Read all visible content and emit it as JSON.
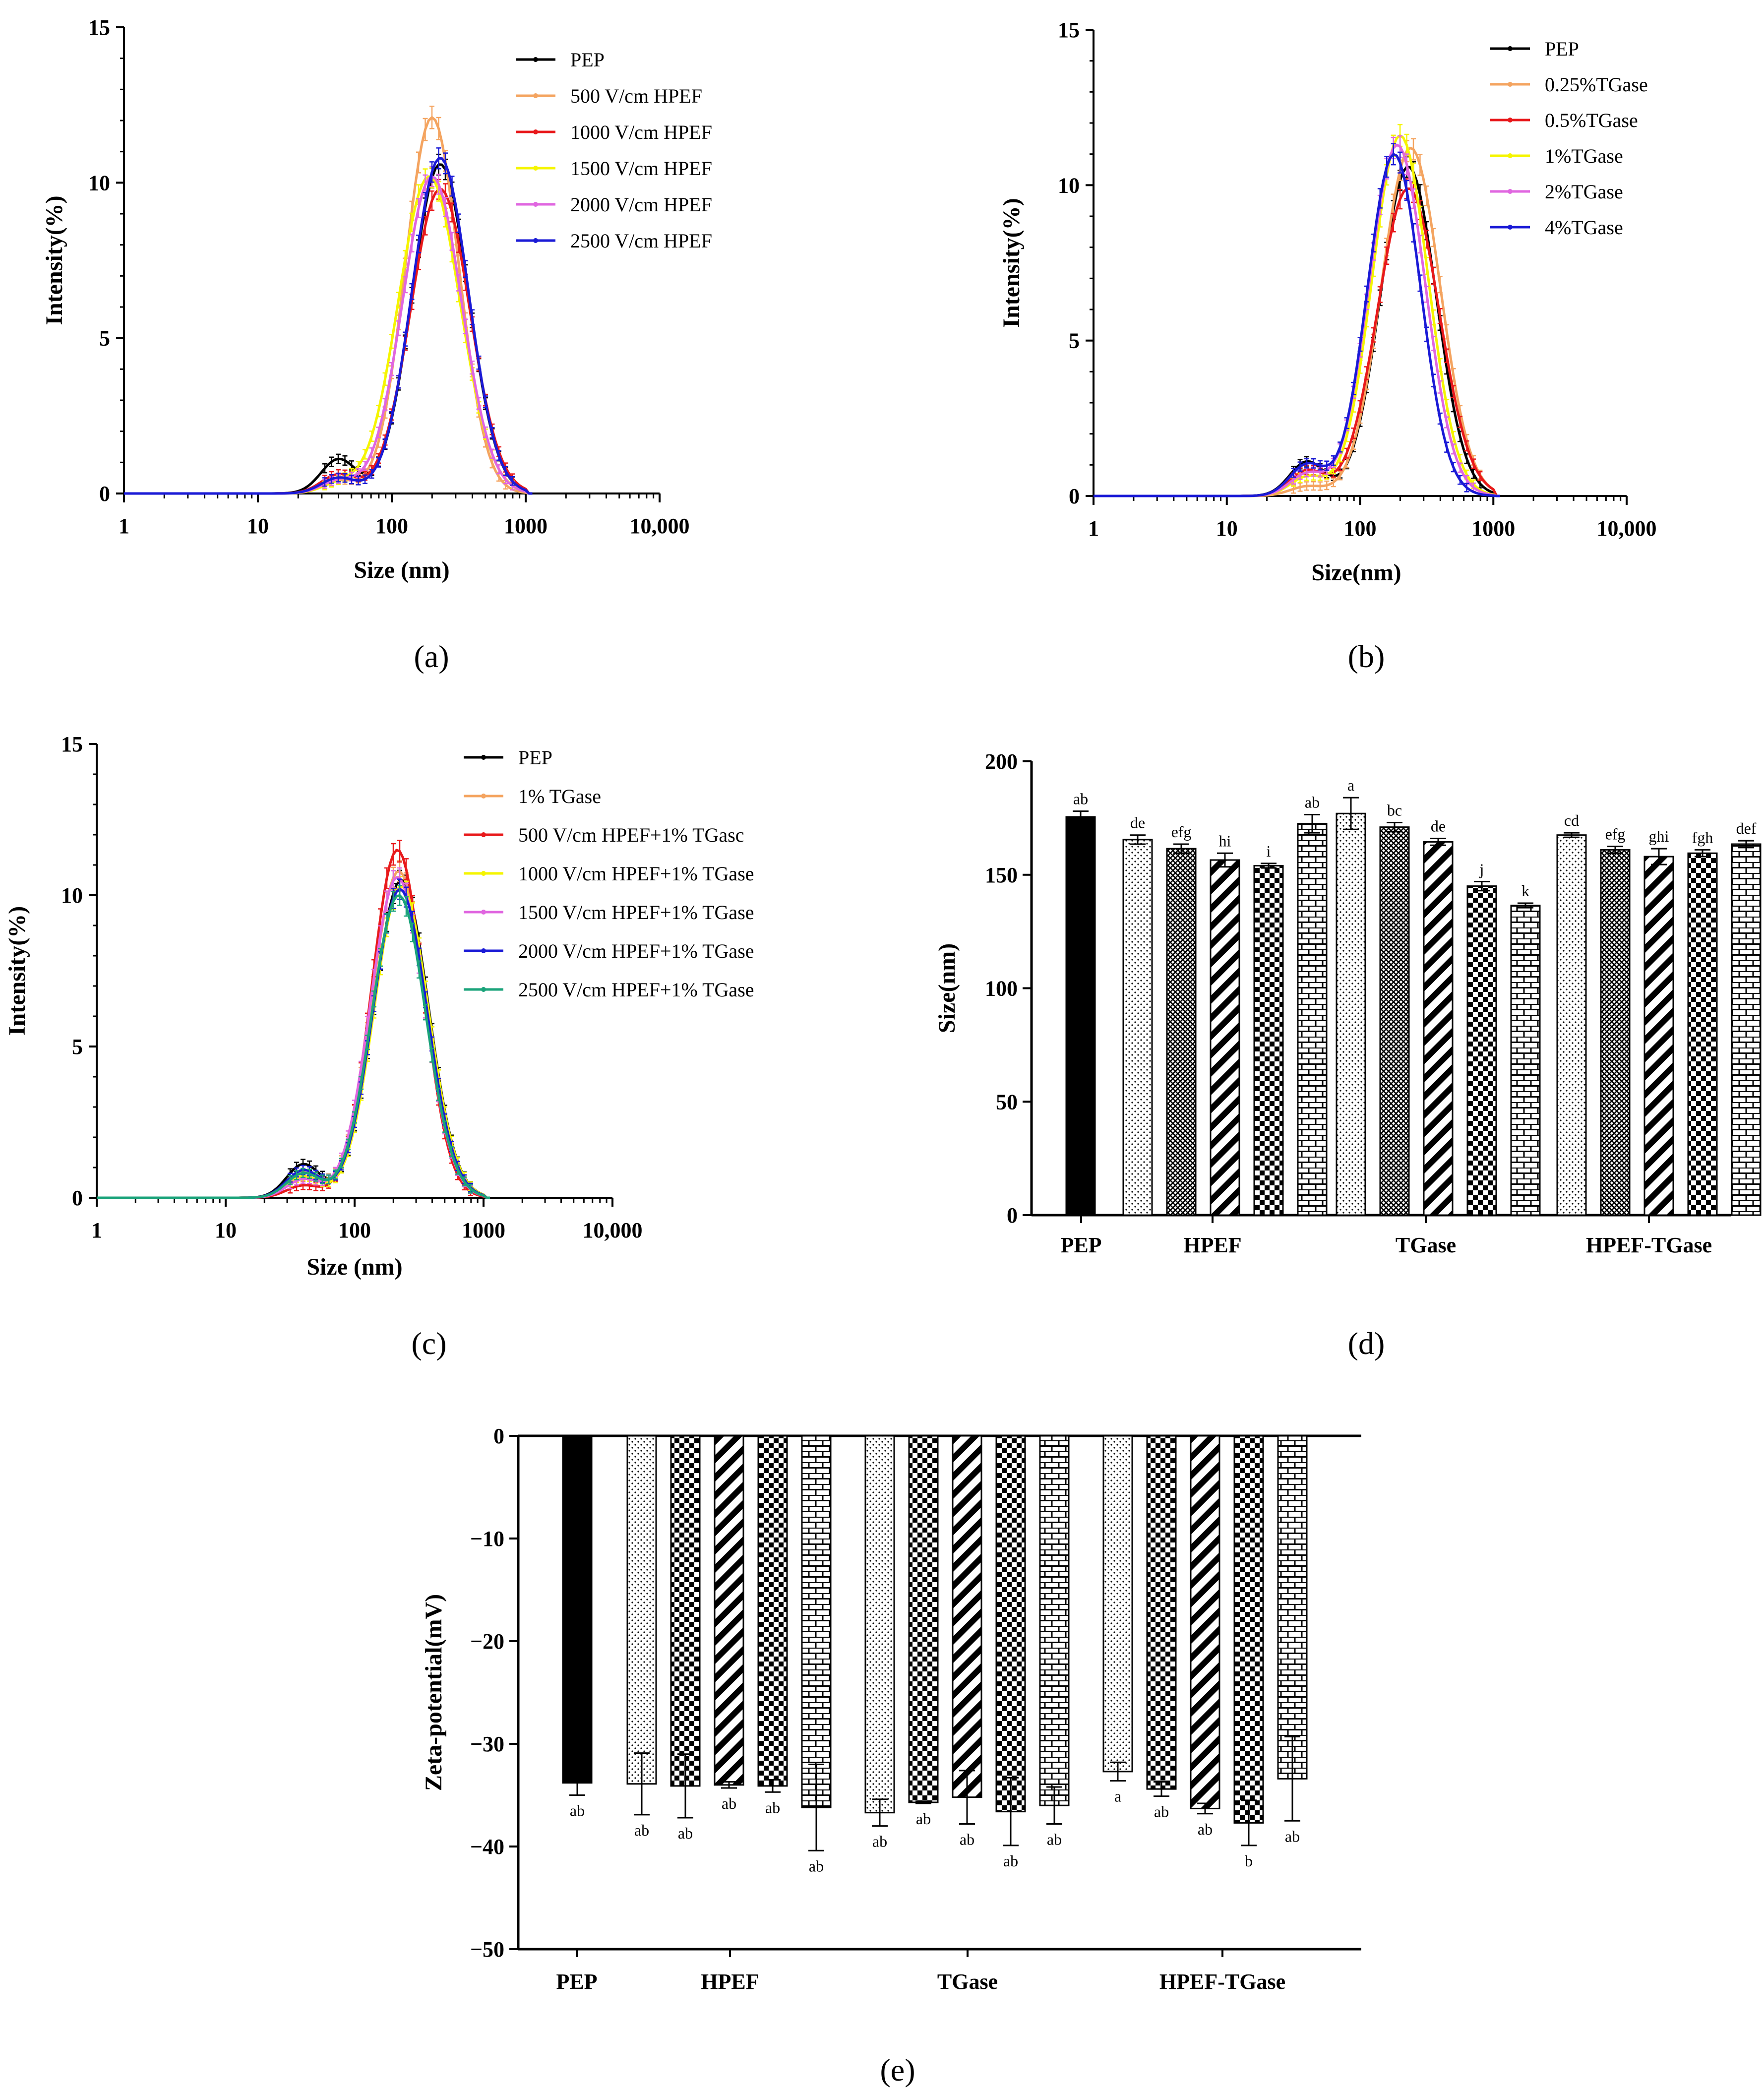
{
  "colors": {
    "PEP": "#000000",
    "c_orange": "#f4a460",
    "c_red": "#e8191b",
    "c_yellow": "#f5f500",
    "c_magenta": "#e066e0",
    "c_blue": "#1a1ad6",
    "c_teal": "#1aa37a"
  },
  "chart_data": [
    {
      "id": "a",
      "type": "line",
      "panel_label": "(a)",
      "xlabel": "Size (nm)",
      "ylabel": "Intensity(%)",
      "x_scale": "log",
      "xlim": [
        1,
        10000
      ],
      "ylim": [
        0,
        15
      ],
      "xticks": [
        "1",
        "10",
        "100",
        "1000",
        "10,000"
      ],
      "yticks": [
        "0",
        "5",
        "10",
        "15"
      ],
      "legend_position": "top-right",
      "series": [
        {
          "name": "PEP",
          "color": "#000000",
          "peak": 10.6,
          "center": 230,
          "width": 0.21,
          "shoulder": 1.1
        },
        {
          "name": "500   V/cm HPEF",
          "color": "#f4a460",
          "peak": 12.1,
          "center": 200,
          "width": 0.2,
          "shoulder": 0.4
        },
        {
          "name": "1000 V/cm HPEF",
          "color": "#e8191b",
          "peak": 9.8,
          "center": 230,
          "width": 0.22,
          "shoulder": 0.6
        },
        {
          "name": "1500 V/cm HPEF",
          "color": "#f5f500",
          "peak": 10.2,
          "center": 190,
          "width": 0.23,
          "shoulder": 0.3
        },
        {
          "name": "2000 V/cm HPEF",
          "color": "#e066e0",
          "peak": 10.2,
          "center": 200,
          "width": 0.22,
          "shoulder": 0.4
        },
        {
          "name": "2500 V/cm HPEF",
          "color": "#1a1ad6",
          "peak": 10.8,
          "center": 230,
          "width": 0.21,
          "shoulder": 0.5
        }
      ]
    },
    {
      "id": "b",
      "type": "line",
      "panel_label": "(b)",
      "xlabel": "Size(nm)",
      "ylabel": "Intensity(%)",
      "x_scale": "log",
      "xlim": [
        1,
        10000
      ],
      "ylim": [
        0,
        15
      ],
      "xticks": [
        "1",
        "10",
        "100",
        "1000",
        "10,000"
      ],
      "yticks": [
        "0",
        "5",
        "10",
        "15"
      ],
      "legend_position": "top-right",
      "series": [
        {
          "name": "PEP",
          "color": "#000000",
          "peak": 10.6,
          "center": 230,
          "width": 0.21,
          "shoulder": 1.1
        },
        {
          "name": "0.25%TGase",
          "color": "#f4a460",
          "peak": 11.2,
          "center": 240,
          "width": 0.22,
          "shoulder": 0.3
        },
        {
          "name": "0.5%TGase",
          "color": "#e8191b",
          "peak": 9.9,
          "center": 230,
          "width": 0.23,
          "shoulder": 0.8
        },
        {
          "name": "1%TGase",
          "color": "#f5f500",
          "peak": 11.6,
          "center": 200,
          "width": 0.21,
          "shoulder": 0.6
        },
        {
          "name": "2%TGase",
          "color": "#e066e0",
          "peak": 11.3,
          "center": 190,
          "width": 0.21,
          "shoulder": 0.7
        },
        {
          "name": "4%TGase",
          "color": "#1a1ad6",
          "peak": 11.0,
          "center": 180,
          "width": 0.2,
          "shoulder": 1.0
        }
      ]
    },
    {
      "id": "c",
      "type": "line",
      "panel_label": "(c)",
      "xlabel": "Size (nm)",
      "ylabel": "Intensity(%)",
      "x_scale": "log",
      "xlim": [
        1,
        10000
      ],
      "ylim": [
        0,
        15
      ],
      "xticks": [
        "1",
        "10",
        "100",
        "1000",
        "10,000"
      ],
      "yticks": [
        "0",
        "5",
        "10",
        "15"
      ],
      "legend_position": "top-right",
      "series": [
        {
          "name": "PEP",
          "color": "#000000",
          "peak": 10.5,
          "center": 230,
          "width": 0.21,
          "shoulder": 1.1
        },
        {
          "name": "1% TGase",
          "color": "#f4a460",
          "peak": 10.8,
          "center": 220,
          "width": 0.21,
          "shoulder": 0.8
        },
        {
          "name": "500   V/cm HPEF+1% TGasc",
          "color": "#e8191b",
          "peak": 11.5,
          "center": 215,
          "width": 0.2,
          "shoulder": 0.4
        },
        {
          "name": "1000  V/cm HPEF+1% TGase",
          "color": "#f5f500",
          "peak": 10.3,
          "center": 230,
          "width": 0.21,
          "shoulder": 0.7
        },
        {
          "name": "1500  V/cm HPEF+1% TGase",
          "color": "#e066e0",
          "peak": 10.6,
          "center": 215,
          "width": 0.21,
          "shoulder": 0.6
        },
        {
          "name": "2000  V/cm HPEF+1% TGase",
          "color": "#1a1ad6",
          "peak": 10.2,
          "center": 225,
          "width": 0.21,
          "shoulder": 0.9
        },
        {
          "name": "2500  V/cm HPEF+1% TGase",
          "color": "#1aa37a",
          "peak": 10.0,
          "center": 220,
          "width": 0.21,
          "shoulder": 0.8
        }
      ]
    },
    {
      "id": "d",
      "type": "bar",
      "panel_label": "(d)",
      "ylabel": "Size(nm)",
      "ylim": [
        0,
        200
      ],
      "yticks": [
        "0",
        "50",
        "100",
        "150",
        "200"
      ],
      "groups": [
        "PEP",
        "HPEF",
        "TGase",
        "HPEF-TGase"
      ],
      "bars": [
        {
          "group": 0,
          "pattern": "solid",
          "value": 175.5,
          "err": 2.5,
          "label": "ab"
        },
        {
          "group": 1,
          "pattern": "dots",
          "value": 165.5,
          "err": 2,
          "label": "de"
        },
        {
          "group": 1,
          "pattern": "cross",
          "value": 161.5,
          "err": 2,
          "label": "efg"
        },
        {
          "group": 1,
          "pattern": "diag",
          "value": 156.5,
          "err": 3,
          "label": "hi"
        },
        {
          "group": 1,
          "pattern": "checker",
          "value": 154,
          "err": 1,
          "label": "i"
        },
        {
          "group": 1,
          "pattern": "brick",
          "value": 172.5,
          "err": 4,
          "label": "ab"
        },
        {
          "group": 2,
          "pattern": "dots",
          "value": 177,
          "err": 7,
          "label": "a"
        },
        {
          "group": 2,
          "pattern": "cross",
          "value": 171,
          "err": 2,
          "label": "bc"
        },
        {
          "group": 2,
          "pattern": "diag",
          "value": 164.5,
          "err": 1.5,
          "label": "de"
        },
        {
          "group": 2,
          "pattern": "checker",
          "value": 145,
          "err": 2,
          "label": "j"
        },
        {
          "group": 2,
          "pattern": "brick",
          "value": 136.5,
          "err": 1,
          "label": "k"
        },
        {
          "group": 3,
          "pattern": "dots",
          "value": 167.5,
          "err": 1,
          "label": "cd"
        },
        {
          "group": 3,
          "pattern": "cross",
          "value": 161,
          "err": 1.5,
          "label": "efg"
        },
        {
          "group": 3,
          "pattern": "diag",
          "value": 158,
          "err": 3.5,
          "label": "ghi"
        },
        {
          "group": 3,
          "pattern": "checker",
          "value": 159.5,
          "err": 1.5,
          "label": "fgh"
        },
        {
          "group": 3,
          "pattern": "brick",
          "value": 163.5,
          "err": 1.5,
          "label": "def"
        }
      ]
    },
    {
      "id": "e",
      "type": "bar",
      "panel_label": "(e)",
      "ylabel": "Zeta-potential(mV)",
      "ylim": [
        -50,
        0
      ],
      "yticks": [
        "0",
        "−10",
        "−20",
        "−30",
        "−40",
        "−50"
      ],
      "groups": [
        "PEP",
        "HPEF",
        "TGase",
        "HPEF-TGase"
      ],
      "bars": [
        {
          "group": 0,
          "pattern": "solid",
          "value": -33.8,
          "err": 1.2,
          "label": "ab"
        },
        {
          "group": 1,
          "pattern": "dots",
          "value": -33.9,
          "err": 3,
          "label": "ab"
        },
        {
          "group": 1,
          "pattern": "checker",
          "value": -34.1,
          "err": 3.1,
          "label": "ab"
        },
        {
          "group": 1,
          "pattern": "diag",
          "value": -34.0,
          "err": 0.3,
          "label": "ab"
        },
        {
          "group": 1,
          "pattern": "checker",
          "value": -34.1,
          "err": 0.6,
          "label": "ab"
        },
        {
          "group": 1,
          "pattern": "brick",
          "value": -36.2,
          "err": 4.2,
          "label": "ab"
        },
        {
          "group": 2,
          "pattern": "dots",
          "value": -36.7,
          "err": 1.3,
          "label": "ab"
        },
        {
          "group": 2,
          "pattern": "checker",
          "value": -35.7,
          "err": 0.1,
          "label": "ab"
        },
        {
          "group": 2,
          "pattern": "diag",
          "value": -35.2,
          "err": 2.6,
          "label": "ab"
        },
        {
          "group": 2,
          "pattern": "checker",
          "value": -36.6,
          "err": 3.3,
          "label": "ab"
        },
        {
          "group": 2,
          "pattern": "brick",
          "value": -36.0,
          "err": 1.8,
          "label": "ab"
        },
        {
          "group": 3,
          "pattern": "dots",
          "value": -32.7,
          "err": 0.9,
          "label": "a"
        },
        {
          "group": 3,
          "pattern": "checker",
          "value": -34.4,
          "err": 0.7,
          "label": "ab"
        },
        {
          "group": 3,
          "pattern": "diag",
          "value": -36.3,
          "err": 0.5,
          "label": "ab"
        },
        {
          "group": 3,
          "pattern": "checker",
          "value": -37.7,
          "err": 2.2,
          "label": "b"
        },
        {
          "group": 3,
          "pattern": "brick",
          "value": -33.4,
          "err": 4.1,
          "label": "ab"
        }
      ]
    }
  ]
}
